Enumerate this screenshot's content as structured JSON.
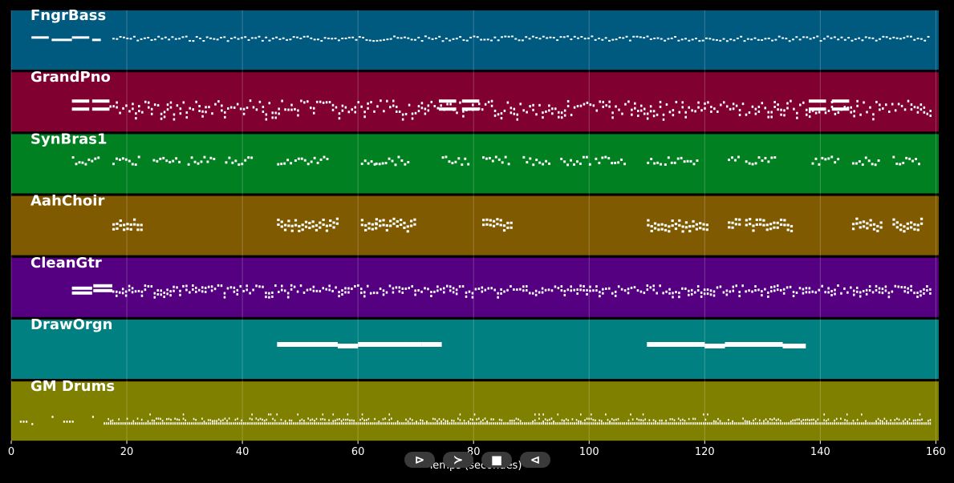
{
  "axis": {
    "xlabel": "Temps (secondes)",
    "xmin": 0,
    "xmax": 160.5,
    "ticks": [
      0,
      20,
      40,
      60,
      80,
      100,
      120,
      140,
      160
    ]
  },
  "tracks": [
    {
      "name": "FngrBass",
      "color": "#005a80",
      "pattern": "bass"
    },
    {
      "name": "GrandPno",
      "color": "#800030",
      "pattern": "piano"
    },
    {
      "name": "SynBras1",
      "color": "#008020",
      "pattern": "brass"
    },
    {
      "name": "AahChoir",
      "color": "#805a00",
      "pattern": "choir"
    },
    {
      "name": "CleanGtr",
      "color": "#550080",
      "pattern": "guitar"
    },
    {
      "name": "DrawOrgn",
      "color": "#008080",
      "pattern": "organ"
    },
    {
      "name": "GM Drums",
      "color": "#808000",
      "pattern": "drums"
    }
  ],
  "controls": [
    {
      "name": "play-button",
      "glyph": "⊳"
    },
    {
      "name": "forward-button",
      "glyph": "≻"
    },
    {
      "name": "stop-button",
      "glyph": "■"
    },
    {
      "name": "back-button",
      "glyph": "⊲"
    }
  ]
}
